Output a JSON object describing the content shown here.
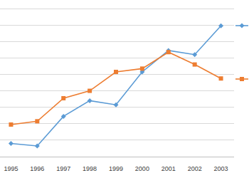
{
  "chart_data": {
    "type": "line",
    "categories": [
      "1995",
      "1996",
      "1997",
      "1998",
      "1999",
      "2000",
      "2001",
      "2002",
      "2003"
    ],
    "series": [
      {
        "color": "#5b9bd5",
        "marker": "diamond",
        "values": [
          0.8,
          0.65,
          2.45,
          3.4,
          3.15,
          5.15,
          6.45,
          6.2,
          7.95
        ]
      },
      {
        "color": "#ed7d31",
        "marker": "square",
        "values": [
          1.95,
          2.15,
          3.55,
          4.0,
          5.15,
          5.35,
          6.35,
          5.6,
          4.75
        ]
      }
    ],
    "ylim": [
      0,
      9
    ],
    "yticks": [
      0,
      1,
      2,
      3,
      4,
      5,
      6,
      7,
      8,
      9
    ],
    "grid": true,
    "tick_labels": "x",
    "legend": "right"
  }
}
